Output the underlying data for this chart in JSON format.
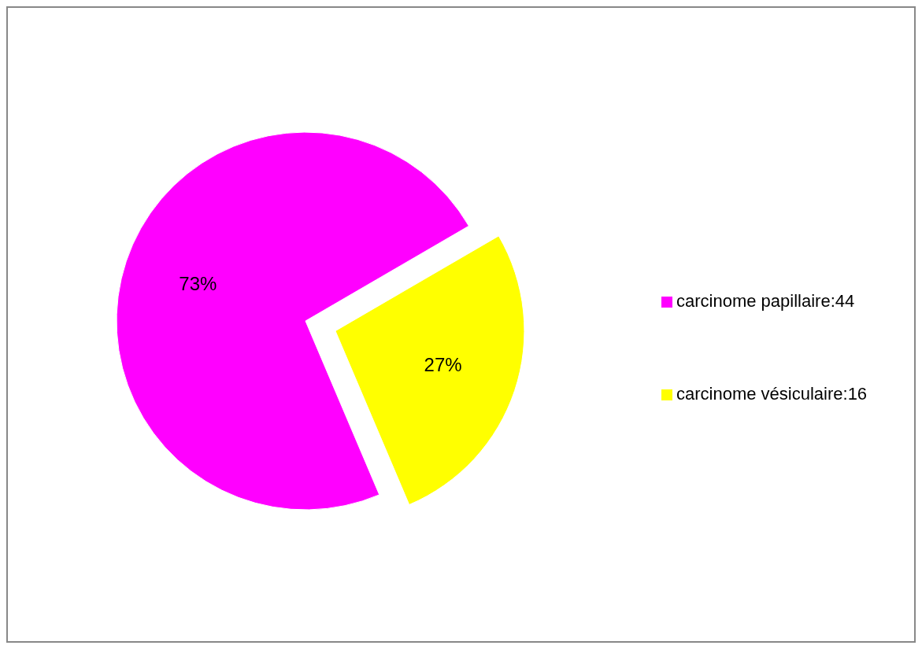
{
  "chart_data": {
    "type": "pie",
    "categories": [
      "carcinome papillaire:44",
      "carcinome vésiculaire:16"
    ],
    "values": [
      73,
      27
    ],
    "colors": [
      "#ff00ff",
      "#ffff00"
    ],
    "value_labels": [
      "73%",
      "27%"
    ],
    "legend": "right"
  }
}
